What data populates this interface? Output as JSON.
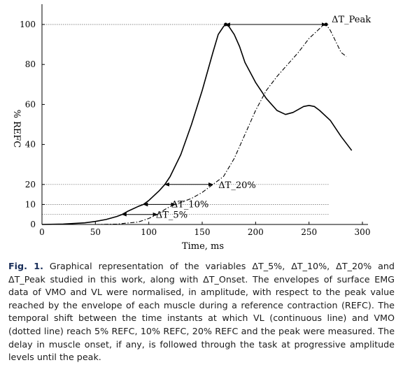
{
  "chart_data": {
    "type": "line",
    "xlabel": "Time, ms",
    "ylabel": "% REFC",
    "xlim": [
      0,
      300
    ],
    "ylim": [
      0,
      105
    ],
    "xticks": [
      "0",
      "50",
      "100",
      "150",
      "200",
      "250",
      "300"
    ],
    "yticks": [
      "0",
      "10",
      "20",
      "40",
      "60",
      "80",
      "100"
    ],
    "reference_lines": [
      5,
      10,
      20,
      100
    ],
    "grid": false,
    "legend": "none",
    "series": [
      {
        "style": "solid",
        "x": [
          0,
          20,
          40,
          50,
          60,
          70,
          75,
          80,
          90,
          95,
          100,
          110,
          115,
          120,
          130,
          140,
          150,
          160,
          165,
          170,
          172,
          175,
          180,
          185,
          190,
          200,
          210,
          220,
          228,
          235,
          240,
          245,
          250,
          255,
          260,
          270,
          280,
          290
        ],
        "y": [
          0,
          0.2,
          0.8,
          1.5,
          2.5,
          4,
          5,
          6.5,
          9,
          10,
          12,
          17,
          20,
          24,
          35,
          50,
          67,
          86,
          95,
          99,
          100,
          99,
          95,
          89,
          81,
          71,
          63,
          57,
          55,
          56,
          57.5,
          59,
          59.5,
          59,
          57,
          52,
          44,
          37
        ]
      },
      {
        "style": "dash-dot",
        "x": [
          50,
          70,
          90,
          100,
          108,
          115,
          120,
          125,
          130,
          140,
          150,
          160,
          170,
          180,
          190,
          200,
          210,
          220,
          230,
          240,
          250,
          258,
          262,
          266,
          270,
          280,
          285
        ],
        "y": [
          0,
          0.2,
          1.2,
          3,
          5,
          7.5,
          9,
          10,
          11,
          13,
          16,
          20,
          24,
          33,
          45,
          57,
          67,
          74,
          80,
          86,
          93,
          97,
          99,
          100,
          97,
          86,
          84
        ]
      }
    ],
    "annotations": [
      {
        "label": "ΔT_Peak",
        "x_from": 172,
        "x_to": 266,
        "y": 100
      },
      {
        "label": "ΔT_20%",
        "x_from": 115,
        "x_to": 160,
        "y": 20
      },
      {
        "label": "ΔT_10%",
        "x_from": 95,
        "x_to": 125,
        "y": 10
      },
      {
        "label": "ΔT_5%",
        "x_from": 75,
        "x_to": 108,
        "y": 5
      }
    ]
  },
  "caption": {
    "label": "Fig. 1.",
    "text": "Graphical representation of the variables ΔT_5%, ΔT_10%, ΔT_20% and ΔT_Peak studied in this work, along with ΔT_Onset. The envelopes of surface EMG data of VMO and VL were normalised, in amplitude, with respect to the peak value reached by the envelope of each muscle during a reference contraction (REFC). The temporal shift between the time instants at which VL (continuous line) and VMO (dotted line) reach 5% REFC, 10% REFC, 20% REFC and the peak were measured. The delay in muscle onset, if any, is followed through the task at progressive amplitude levels until the peak."
  }
}
